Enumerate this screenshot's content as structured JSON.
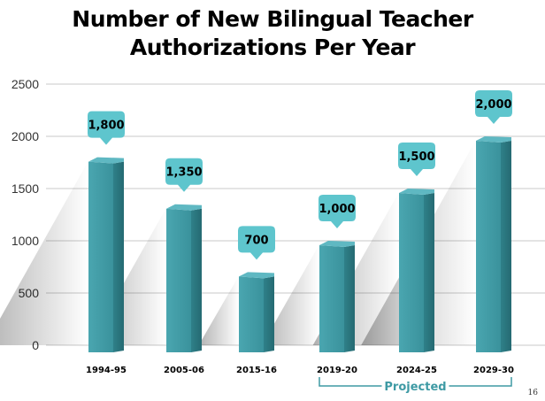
{
  "chart_data": {
    "type": "bar",
    "title_lines": [
      "Number of New Bilingual Teacher",
      "Authorizations Per Year"
    ],
    "categories": [
      "1994-95",
      "2005-06",
      "2015-16",
      "2019-20",
      "2024-25",
      "2029-30"
    ],
    "values": [
      1800,
      1350,
      700,
      1000,
      1500,
      2000
    ],
    "data_labels": [
      "1,800",
      "1,350",
      "700",
      "1,000",
      "1,500",
      "2,000"
    ],
    "y_ticks": [
      "0",
      "500",
      "1000",
      "1500",
      "2000",
      "2500"
    ],
    "ylim": [
      0,
      2500
    ],
    "grid": true,
    "annotation": {
      "label": "Projected",
      "from_category": "2019-20",
      "to_category": "2029-30"
    },
    "colors": {
      "bar_front": "#3e9aa4",
      "bar_side": "#2b7881",
      "bar_top": "#5fb8c2",
      "callout": "#5ec5cd",
      "bracket": "#3e9aa4",
      "grid": "#c8c8c8"
    }
  },
  "slide_number": "16"
}
